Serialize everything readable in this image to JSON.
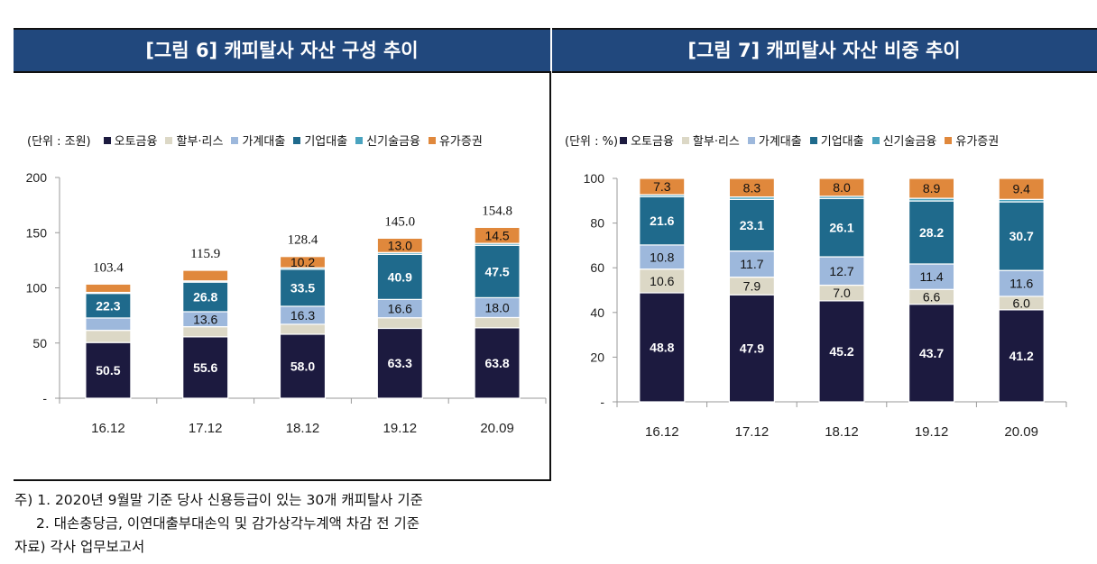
{
  "header": {
    "left_title": "[그림 6] 캐피탈사 자산 구성 추이",
    "right_title": "[그림 7] 캐피탈사 자산 비중 추이"
  },
  "legend_items": [
    {
      "label": "오토금융",
      "color": "#1c1a3f"
    },
    {
      "label": "할부·리스",
      "color": "#dcd8c6"
    },
    {
      "label": "가계대출",
      "color": "#9db8dc"
    },
    {
      "label": "기업대출",
      "color": "#1f6a8c"
    },
    {
      "label": "신기술금융",
      "color": "#4aa3bf"
    },
    {
      "label": "유가증권",
      "color": "#e0883c"
    }
  ],
  "chart_data": [
    {
      "type": "bar",
      "stacked": true,
      "title": "[그림 6] 캐피탈사 자산 구성 추이",
      "unit_label": "(단위 : 조원)",
      "xlabel": "",
      "ylabel": "",
      "categories": [
        "16.12",
        "17.12",
        "18.12",
        "19.12",
        "20.09"
      ],
      "ylim": [
        0,
        200
      ],
      "yticks": [
        0,
        50,
        100,
        150,
        200
      ],
      "ytick_labels": [
        "-",
        "50",
        "100",
        "150",
        "200"
      ],
      "grid": false,
      "legend_position": "top-left",
      "totals": [
        103.4,
        115.9,
        128.4,
        145.0,
        154.8
      ],
      "series": [
        {
          "name": "오토금융",
          "values": [
            50.5,
            55.6,
            58.0,
            63.3,
            63.8
          ],
          "labels": [
            "50.5",
            "55.6",
            "58.0",
            "63.3",
            "63.8"
          ],
          "label_color": "#ffffff"
        },
        {
          "name": "할부·리스",
          "values": [
            11.0,
            9.2,
            9.0,
            9.6,
            9.3
          ],
          "labels": [
            "",
            "",
            "",
            "",
            ""
          ],
          "label_color": "#111111"
        },
        {
          "name": "가계대출",
          "values": [
            11.2,
            13.6,
            16.3,
            16.6,
            18.0
          ],
          "labels": [
            "",
            "13.6",
            "16.3",
            "16.6",
            "18.0"
          ],
          "label_color": "#111111"
        },
        {
          "name": "기업대출",
          "values": [
            22.3,
            26.8,
            33.5,
            40.9,
            47.5
          ],
          "labels": [
            "22.3",
            "26.8",
            "33.5",
            "40.9",
            "47.5"
          ],
          "label_color": "#ffffff"
        },
        {
          "name": "신기술금융",
          "values": [
            0.9,
            1.1,
            1.4,
            1.6,
            1.7
          ],
          "labels": [
            "",
            "",
            "",
            "",
            ""
          ],
          "label_color": "#111111"
        },
        {
          "name": "유가증권",
          "values": [
            7.5,
            9.6,
            10.2,
            13.0,
            14.5
          ],
          "labels": [
            "",
            "",
            "10.2",
            "13.0",
            "14.5"
          ],
          "label_color": "#111111"
        }
      ]
    },
    {
      "type": "bar",
      "stacked": true,
      "title": "[그림 7] 캐피탈사 자산 비중 추이",
      "unit_label": "(단위 : %)",
      "xlabel": "",
      "ylabel": "",
      "categories": [
        "16.12",
        "17.12",
        "18.12",
        "19.12",
        "20.09"
      ],
      "ylim": [
        0,
        100
      ],
      "yticks": [
        0,
        20,
        40,
        60,
        80,
        100
      ],
      "ytick_labels": [
        "-",
        "20",
        "40",
        "60",
        "80",
        "100"
      ],
      "grid": false,
      "legend_position": "top-left",
      "series": [
        {
          "name": "오토금융",
          "values": [
            48.8,
            47.9,
            45.2,
            43.7,
            41.2
          ],
          "labels": [
            "48.8",
            "47.9",
            "45.2",
            "43.7",
            "41.2"
          ],
          "label_color": "#ffffff"
        },
        {
          "name": "할부·리스",
          "values": [
            10.6,
            7.9,
            7.0,
            6.6,
            6.0
          ],
          "labels": [
            "10.6",
            "7.9",
            "7.0",
            "6.6",
            "6.0"
          ],
          "label_color": "#111111"
        },
        {
          "name": "가계대출",
          "values": [
            10.8,
            11.7,
            12.7,
            11.4,
            11.6
          ],
          "labels": [
            "10.8",
            "11.7",
            "12.7",
            "11.4",
            "11.6"
          ],
          "label_color": "#111111"
        },
        {
          "name": "기업대출",
          "values": [
            21.6,
            23.1,
            26.1,
            28.2,
            30.7
          ],
          "labels": [
            "21.6",
            "23.1",
            "26.1",
            "28.2",
            "30.7"
          ],
          "label_color": "#ffffff"
        },
        {
          "name": "신기술금융",
          "values": [
            0.9,
            1.1,
            1.0,
            1.2,
            1.1
          ],
          "labels": [
            "",
            "",
            "",
            "",
            ""
          ],
          "label_color": "#111111"
        },
        {
          "name": "유가증권",
          "values": [
            7.3,
            8.3,
            8.0,
            8.9,
            9.4
          ],
          "labels": [
            "7.3",
            "8.3",
            "8.0",
            "8.9",
            "9.4"
          ],
          "label_color": "#111111"
        }
      ]
    }
  ],
  "notes": {
    "line1": "주) 1. 2020년 9월말 기준 당사 신용등급이 있는 30개 캐피탈사 기준",
    "line2": "2. 대손충당금, 이연대출부대손익 및 감가상각누계액 차감 전 기준",
    "line3": "자료) 각사 업무보고서"
  }
}
